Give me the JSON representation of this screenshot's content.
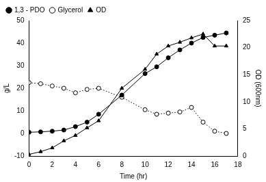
{
  "chart_data": {
    "type": "line",
    "x_label": "Time (hr)",
    "y_label": "g/L",
    "y2_label": "OD (600nm)",
    "x": [
      0,
      1,
      2,
      3,
      4,
      5,
      6,
      8,
      10,
      11,
      12,
      13,
      14,
      15,
      16,
      17
    ],
    "series": [
      {
        "name": "1,3 - PDO",
        "color": "#000000",
        "marker": "circle",
        "line_style": "solid",
        "values": [
          0.5,
          0.7,
          1,
          1.5,
          3,
          5,
          8.5,
          17,
          26.5,
          29.5,
          33.5,
          37,
          40,
          42.5,
          43.5,
          44.5
        ]
      },
      {
        "name": "Glycerol",
        "color": "#000000",
        "marker": "open_circle",
        "line_style": "dotted",
        "values": [
          22.5,
          22,
          21,
          20,
          18,
          19.5,
          20,
          16,
          10.5,
          8.5,
          9,
          9.5,
          11.5,
          5,
          1,
          0
        ]
      },
      {
        "name": "OD",
        "color": "#000000",
        "marker": "triangle",
        "line_style": "solid",
        "axis": "y2",
        "values": [
          0.3,
          0.8,
          1.5,
          2.8,
          3.8,
          5.2,
          6.5,
          12.5,
          16,
          18.8,
          20.3,
          21,
          21.8,
          22.5,
          20.3,
          20.3
        ]
      }
    ],
    "xlim": [
      0,
      18
    ],
    "xticks": [
      0,
      2,
      4,
      6,
      8,
      10,
      12,
      14,
      16,
      18
    ],
    "ylim": [
      -10,
      50
    ],
    "yticks": [
      -10,
      0,
      10,
      20,
      30,
      40,
      50
    ],
    "y2lim": [
      0,
      25
    ],
    "y2ticks": [
      0,
      5,
      10,
      15,
      20,
      25
    ],
    "grid": false,
    "legend": "upper left"
  }
}
